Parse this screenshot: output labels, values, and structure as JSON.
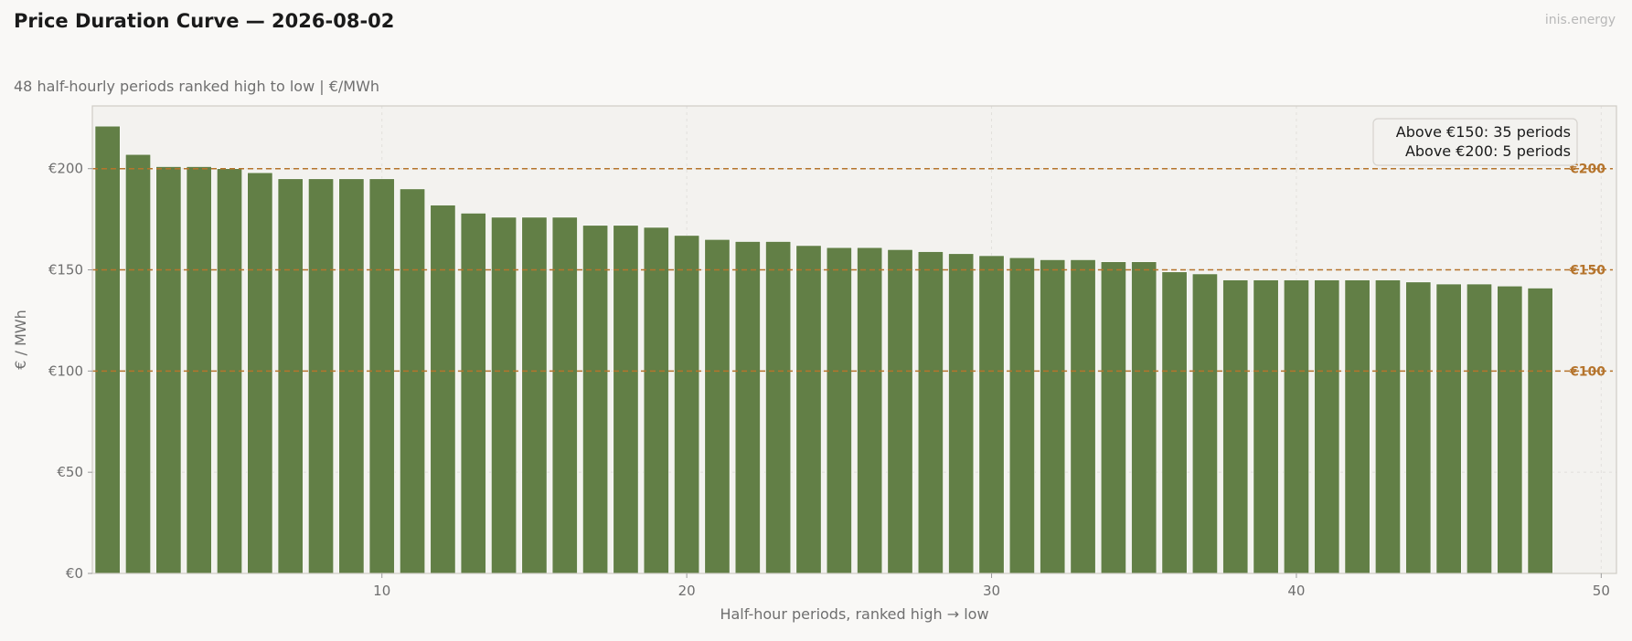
{
  "header": {
    "title": "Price Duration Curve — 2026-08-02",
    "subtitle": "48 half-hourly periods ranked high to low  |  €/MWh",
    "watermark": "inis.energy"
  },
  "colors": {
    "bar": "#627f46",
    "reference": "#b5742c",
    "plot_bg": "#f3f2ef",
    "page_bg": "#f9f8f6"
  },
  "chart_data": {
    "type": "bar",
    "title": "Price Duration Curve — 2026-08-02",
    "subtitle": "48 half-hourly periods ranked high to low  |  €/MWh",
    "xlabel": "Half-hour periods, ranked high → low",
    "ylabel": "€ / MWh",
    "xlim": [
      0.5,
      50.5
    ],
    "ylim": [
      0,
      231
    ],
    "x": [
      1,
      2,
      3,
      4,
      5,
      6,
      7,
      8,
      9,
      10,
      11,
      12,
      13,
      14,
      15,
      16,
      17,
      18,
      19,
      20,
      21,
      22,
      23,
      24,
      25,
      26,
      27,
      28,
      29,
      30,
      31,
      32,
      33,
      34,
      35,
      36,
      37,
      38,
      39,
      40,
      41,
      42,
      43,
      44,
      45,
      46,
      47,
      48
    ],
    "values": [
      221,
      207,
      201,
      201,
      200,
      198,
      195,
      195,
      195,
      195,
      190,
      182,
      178,
      176,
      176,
      176,
      172,
      172,
      171,
      167,
      165,
      164,
      164,
      162,
      161,
      161,
      160,
      159,
      158,
      157,
      156,
      155,
      155,
      154,
      154,
      149,
      148,
      145,
      145,
      145,
      145,
      145,
      145,
      144,
      143,
      143,
      142,
      141
    ],
    "x_ticks": [
      10,
      20,
      30,
      40,
      50
    ],
    "x_tick_labels": [
      "10",
      "20",
      "30",
      "40",
      "50"
    ],
    "y_ticks": [
      0,
      50,
      100,
      150,
      200
    ],
    "y_tick_labels": [
      "€0",
      "€50",
      "€100",
      "€150",
      "€200"
    ],
    "reference_lines": [
      {
        "value": 200,
        "label": "€200"
      },
      {
        "value": 150,
        "label": "€150"
      },
      {
        "value": 100,
        "label": "€100"
      }
    ],
    "grid": true,
    "legend": {
      "placement": "top-right",
      "lines": [
        "Above €150: 35 periods",
        "Above €200: 5 periods"
      ]
    }
  }
}
